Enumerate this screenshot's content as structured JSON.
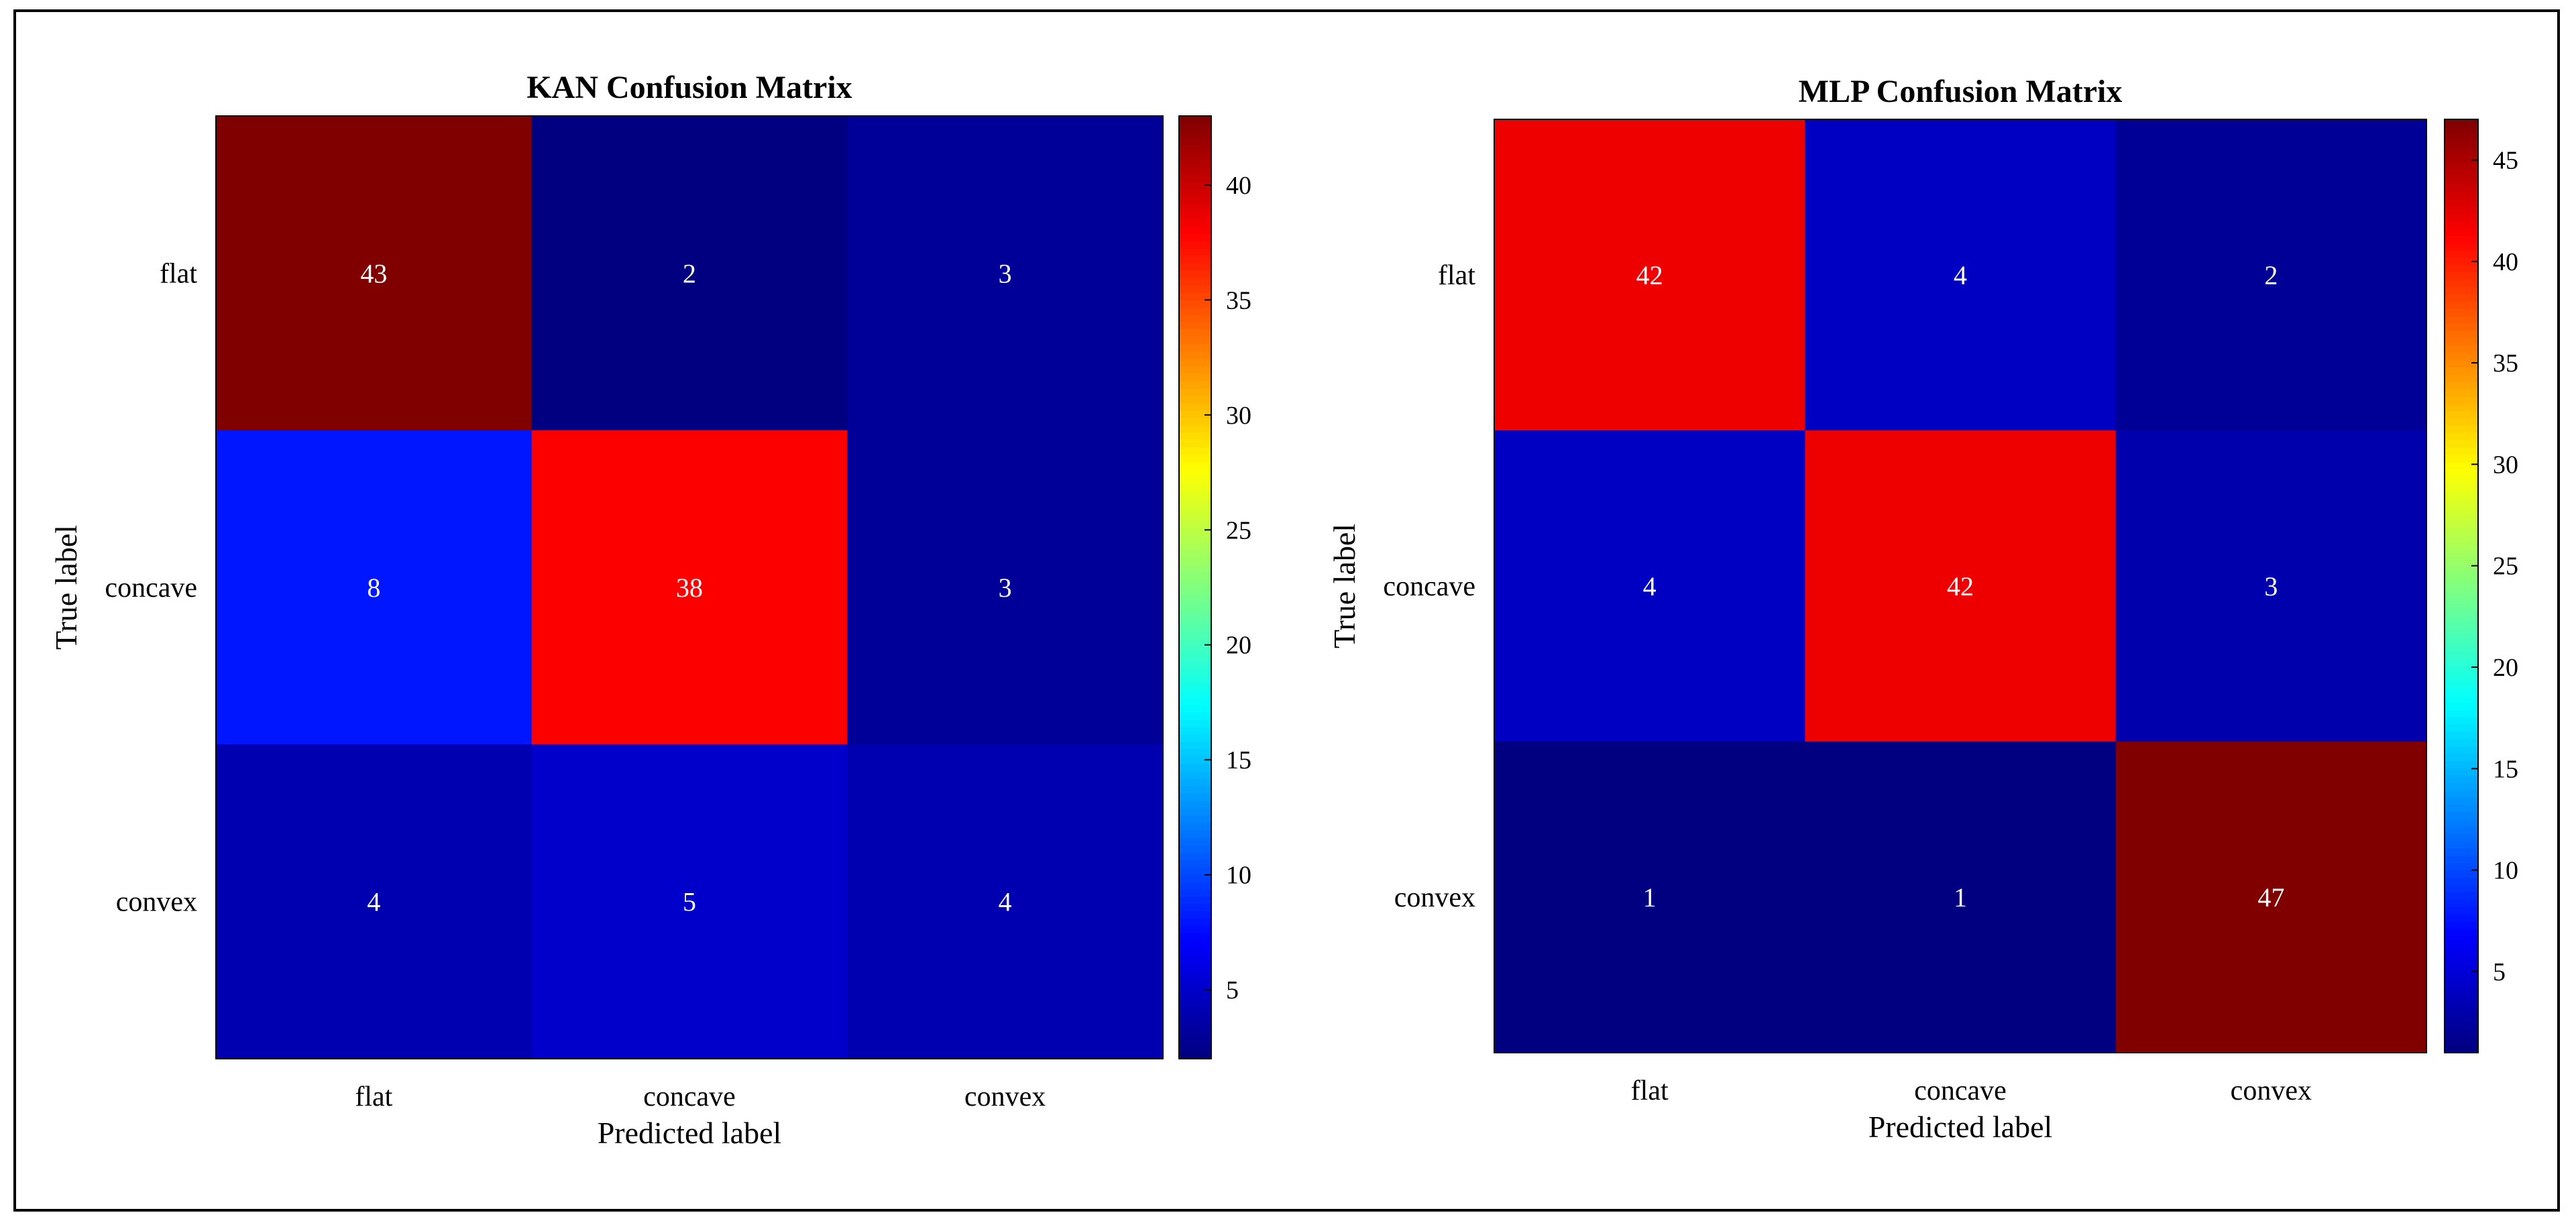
{
  "chart_data": [
    {
      "type": "heatmap",
      "title": "KAN Confusion Matrix",
      "xlabel": "Predicted label",
      "ylabel": "True label",
      "x_categories": [
        "flat",
        "concave",
        "convex"
      ],
      "y_categories": [
        "flat",
        "concave",
        "convex"
      ],
      "values": [
        [
          43,
          2,
          3
        ],
        [
          8,
          38,
          3
        ],
        [
          4,
          5,
          4
        ]
      ],
      "colormap": "jet",
      "clim": [
        2,
        43
      ],
      "colorbar_ticks": [
        5,
        10,
        15,
        20,
        25,
        30,
        35,
        40
      ]
    },
    {
      "type": "heatmap",
      "title": "MLP Confusion Matrix",
      "xlabel": "Predicted label",
      "ylabel": "True label",
      "x_categories": [
        "flat",
        "concave",
        "convex"
      ],
      "y_categories": [
        "flat",
        "concave",
        "convex"
      ],
      "values": [
        [
          42,
          4,
          2
        ],
        [
          4,
          42,
          3
        ],
        [
          1,
          1,
          47
        ]
      ],
      "colormap": "jet",
      "clim": [
        1,
        47
      ],
      "colorbar_ticks": [
        5,
        10,
        15,
        20,
        25,
        30,
        35,
        40,
        45
      ]
    }
  ]
}
